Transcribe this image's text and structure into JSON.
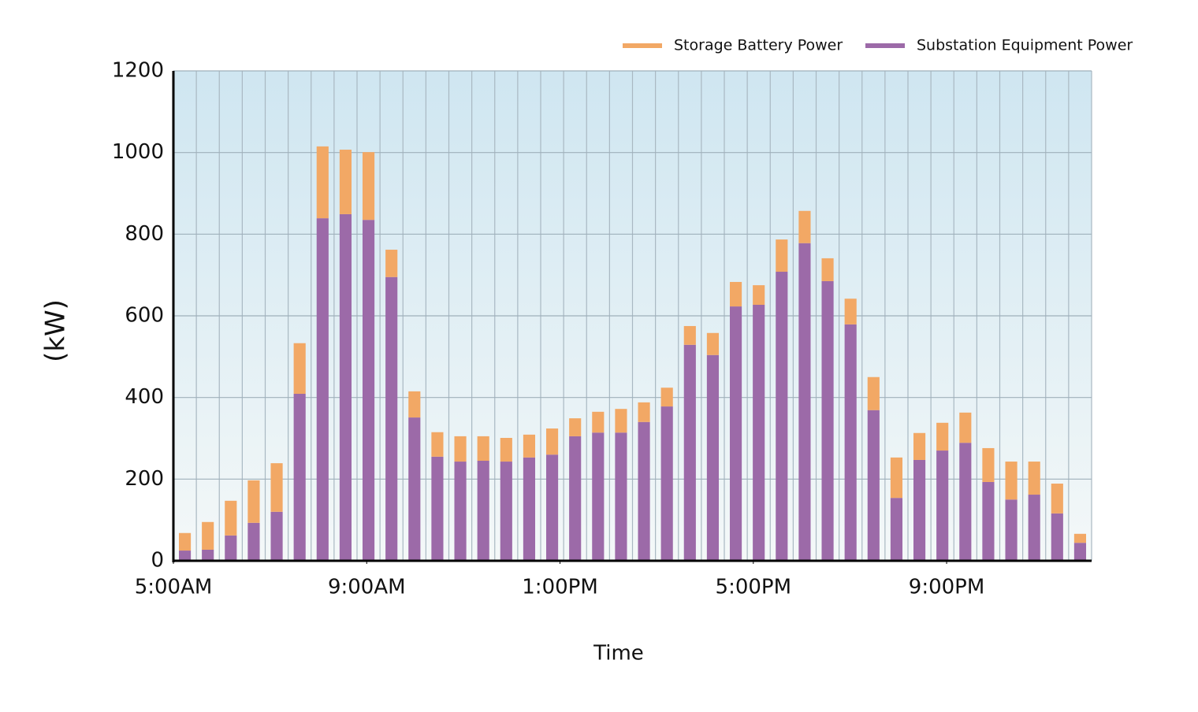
{
  "chart_data": {
    "type": "stacked-bar",
    "x_label": "Time",
    "y_label": "(kW)",
    "categories": [
      null,
      null,
      null,
      null,
      null,
      null,
      null,
      null,
      null,
      null,
      null,
      null,
      null,
      null,
      null,
      null,
      null,
      null,
      null,
      null,
      null,
      null,
      null,
      null,
      null,
      null,
      null,
      null,
      null,
      null,
      null,
      null,
      null,
      null,
      null,
      null,
      null,
      null,
      null,
      null
    ],
    "series": [
      {
        "name": "Storage Battery Power",
        "color": "#f2a865",
        "values": [
          43,
          68,
          85,
          104,
          119,
          124,
          176,
          158,
          166,
          67,
          64,
          60,
          62,
          60,
          58,
          56,
          64,
          44,
          51,
          58,
          48,
          46,
          46,
          54,
          60,
          48,
          79,
          79,
          56,
          63,
          81,
          99,
          66,
          68,
          74,
          83,
          93,
          81,
          73,
          22
        ]
      },
      {
        "name": "Substation Equipment Power",
        "color": "#9c6aa8",
        "values": [
          25,
          27,
          62,
          93,
          120,
          409,
          839,
          849,
          835,
          695,
          351,
          255,
          243,
          245,
          243,
          253,
          260,
          305,
          314,
          314,
          340,
          378,
          529,
          504,
          623,
          627,
          708,
          778,
          685,
          579,
          369,
          154,
          247,
          270,
          289,
          193,
          150,
          162,
          116,
          44
        ]
      }
    ],
    "xlim": [
      5,
      24
    ],
    "xticks": [
      {
        "value": 5,
        "label": "5:00AM"
      },
      {
        "value": 9,
        "label": "9:00AM"
      },
      {
        "value": 13,
        "label": "1:00PM"
      },
      {
        "value": 17,
        "label": "5:00PM"
      },
      {
        "value": 21,
        "label": "9:00PM"
      }
    ],
    "ylim": [
      0,
      1200
    ],
    "yticks": [
      0,
      200,
      400,
      600,
      800,
      1000,
      1200
    ],
    "grid": true
  }
}
